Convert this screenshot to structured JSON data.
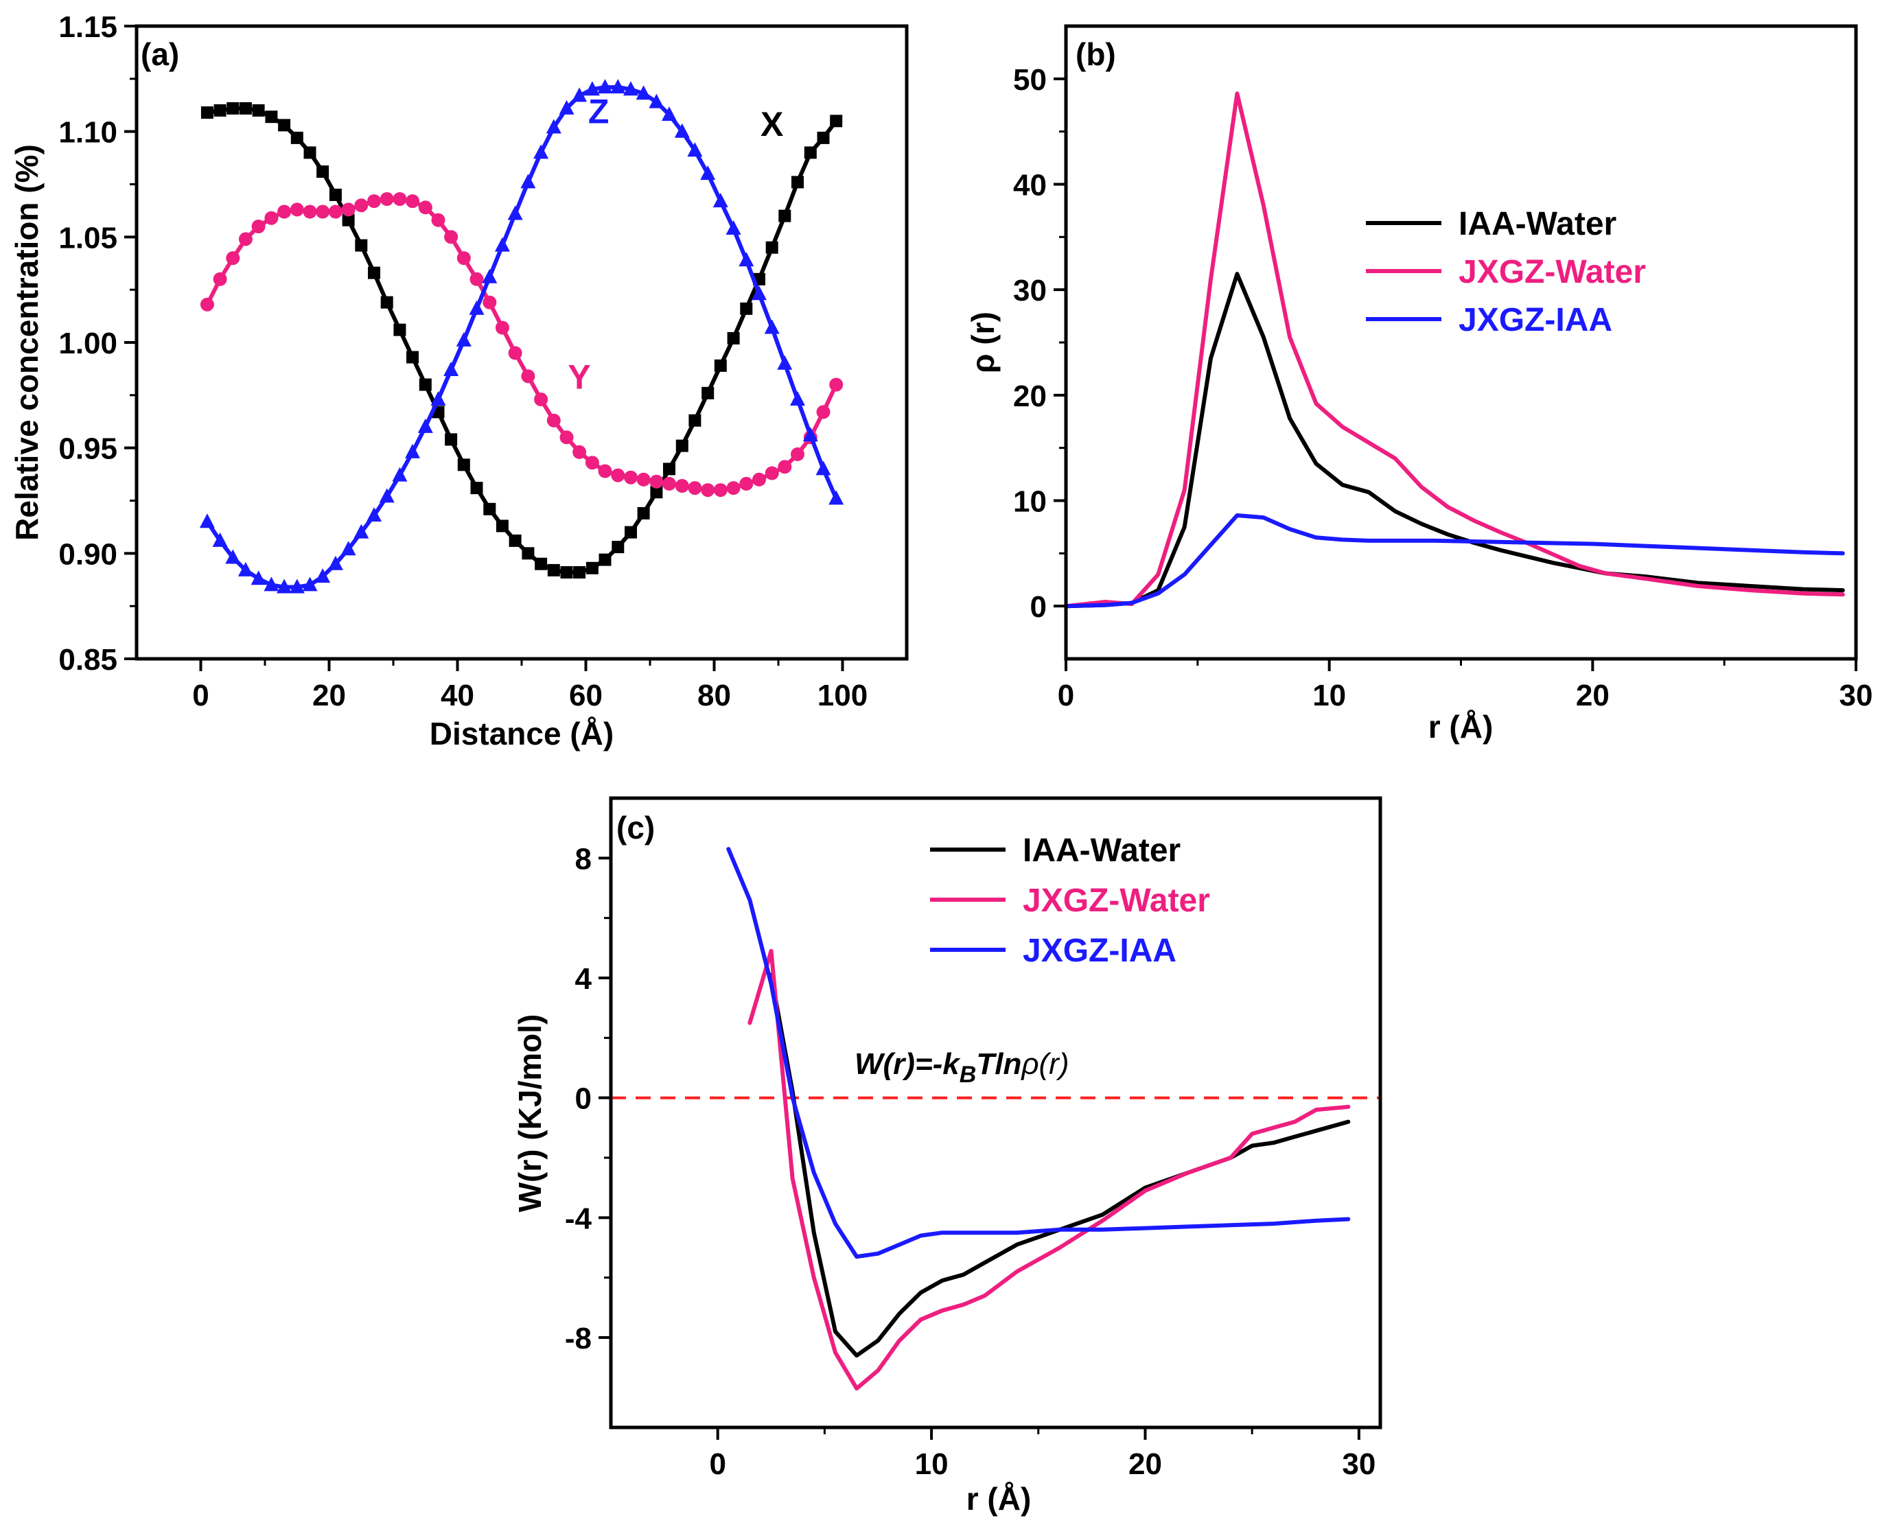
{
  "chart_data": [
    {
      "panel": "(a)",
      "type": "line",
      "title": "",
      "xlabel": "Distance (Å)",
      "ylabel": "Relative concentration (%)",
      "xlim": [
        -10,
        110
      ],
      "ylim": [
        0.85,
        1.15
      ],
      "xticks": [
        0,
        20,
        40,
        60,
        80,
        100
      ],
      "yticks": [
        0.85,
        0.9,
        0.95,
        1.0,
        1.05,
        1.1,
        1.15
      ],
      "xtick_labels": [
        "0",
        "20",
        "40",
        "60",
        "80",
        "100"
      ],
      "ytick_labels": [
        "0.85",
        "0.90",
        "0.95",
        "1.00",
        "1.05",
        "1.10",
        "1.15"
      ],
      "grid": false,
      "series": [
        {
          "name": "X",
          "color": "#000000",
          "marker": "square",
          "x": [
            1,
            3,
            5,
            7,
            9,
            11,
            13,
            15,
            17,
            19,
            21,
            23,
            25,
            27,
            29,
            31,
            33,
            35,
            37,
            39,
            41,
            43,
            45,
            47,
            49,
            51,
            53,
            55,
            57,
            59,
            61,
            63,
            65,
            67,
            69,
            71,
            73,
            75,
            77,
            79,
            81,
            83,
            85,
            87,
            89,
            91,
            93,
            95,
            97,
            99
          ],
          "y": [
            1.109,
            1.11,
            1.111,
            1.111,
            1.11,
            1.107,
            1.103,
            1.097,
            1.09,
            1.081,
            1.07,
            1.058,
            1.046,
            1.033,
            1.019,
            1.006,
            0.993,
            0.98,
            0.967,
            0.954,
            0.942,
            0.931,
            0.921,
            0.913,
            0.906,
            0.9,
            0.895,
            0.892,
            0.891,
            0.891,
            0.893,
            0.897,
            0.903,
            0.91,
            0.919,
            0.929,
            0.94,
            0.951,
            0.963,
            0.976,
            0.989,
            1.002,
            1.016,
            1.03,
            1.045,
            1.06,
            1.076,
            1.09,
            1.097,
            1.105
          ]
        },
        {
          "name": "Y",
          "color": "#ee1f80",
          "marker": "circle",
          "x": [
            1,
            3,
            5,
            7,
            9,
            11,
            13,
            15,
            17,
            19,
            21,
            23,
            25,
            27,
            29,
            31,
            33,
            35,
            37,
            39,
            41,
            43,
            45,
            47,
            49,
            51,
            53,
            55,
            57,
            59,
            61,
            63,
            65,
            67,
            69,
            71,
            73,
            75,
            77,
            79,
            81,
            83,
            85,
            87,
            89,
            91,
            93,
            95,
            97,
            99
          ],
          "y": [
            1.018,
            1.03,
            1.04,
            1.049,
            1.055,
            1.059,
            1.062,
            1.063,
            1.062,
            1.062,
            1.062,
            1.063,
            1.065,
            1.067,
            1.068,
            1.068,
            1.067,
            1.064,
            1.058,
            1.05,
            1.04,
            1.03,
            1.019,
            1.007,
            0.995,
            0.984,
            0.973,
            0.963,
            0.955,
            0.948,
            0.943,
            0.939,
            0.937,
            0.936,
            0.935,
            0.934,
            0.933,
            0.932,
            0.931,
            0.93,
            0.93,
            0.931,
            0.933,
            0.935,
            0.938,
            0.941,
            0.947,
            0.955,
            0.967,
            0.98
          ]
        },
        {
          "name": "Z",
          "color": "#1a1aff",
          "marker": "triangle",
          "x": [
            1,
            3,
            5,
            7,
            9,
            11,
            13,
            15,
            17,
            19,
            21,
            23,
            25,
            27,
            29,
            31,
            33,
            35,
            37,
            39,
            41,
            43,
            45,
            47,
            49,
            51,
            53,
            55,
            57,
            59,
            61,
            63,
            65,
            67,
            69,
            71,
            73,
            75,
            77,
            79,
            81,
            83,
            85,
            87,
            89,
            91,
            93,
            95,
            97,
            99
          ],
          "y": [
            0.915,
            0.906,
            0.898,
            0.892,
            0.888,
            0.885,
            0.884,
            0.884,
            0.885,
            0.889,
            0.895,
            0.902,
            0.91,
            0.918,
            0.927,
            0.937,
            0.948,
            0.96,
            0.973,
            0.987,
            1.001,
            1.016,
            1.031,
            1.046,
            1.061,
            1.076,
            1.09,
            1.102,
            1.111,
            1.117,
            1.12,
            1.121,
            1.121,
            1.12,
            1.118,
            1.114,
            1.108,
            1.1,
            1.091,
            1.08,
            1.067,
            1.054,
            1.039,
            1.023,
            1.007,
            0.99,
            0.973,
            0.956,
            0.94,
            0.926
          ]
        }
      ],
      "annotations": [
        {
          "text": "X",
          "x": 89,
          "y": 1.098
        },
        {
          "text": "Y",
          "x": 59,
          "y": 0.978
        },
        {
          "text": "Z",
          "x": 62,
          "y": 1.104
        }
      ]
    },
    {
      "panel": "(b)",
      "type": "line",
      "title": "",
      "xlabel": "r (Å)",
      "ylabel": "ρ (r)",
      "xlim": [
        0,
        30
      ],
      "ylim": [
        -5,
        55
      ],
      "xticks": [
        0,
        10,
        20,
        30
      ],
      "yticks": [
        0,
        10,
        20,
        30,
        40,
        50
      ],
      "xtick_labels": [
        "0",
        "10",
        "20",
        "30"
      ],
      "ytick_labels": [
        "0",
        "10",
        "20",
        "30",
        "40",
        "50"
      ],
      "grid": false,
      "legend_position": "center-right",
      "series": [
        {
          "name": "IAA-Water",
          "color": "#000000",
          "x": [
            0,
            1.5,
            2.5,
            3.5,
            4.5,
            5.5,
            6.5,
            7.5,
            8.5,
            9.5,
            10.5,
            11.5,
            12.5,
            13.5,
            14.5,
            15.5,
            16.5,
            17.5,
            18.5,
            19.5,
            20.5,
            22,
            24,
            26,
            28,
            29.5
          ],
          "y": [
            0,
            0.1,
            0.3,
            1.5,
            7.5,
            23.5,
            31.5,
            25.5,
            17.8,
            13.5,
            11.5,
            10.8,
            9.0,
            7.8,
            6.8,
            6.0,
            5.3,
            4.7,
            4.1,
            3.6,
            3.1,
            2.8,
            2.2,
            1.9,
            1.6,
            1.5
          ]
        },
        {
          "name": "JXGZ-Water",
          "color": "#ee1f80",
          "x": [
            0,
            1.5,
            2.5,
            3.5,
            4.5,
            5.5,
            6.5,
            7.5,
            8.5,
            9.5,
            10.5,
            11.5,
            12.5,
            13.5,
            14.5,
            15.5,
            16.5,
            17.5,
            18.5,
            19.5,
            20.5,
            22,
            24,
            26,
            28,
            29.5
          ],
          "y": [
            0,
            0.4,
            0.2,
            3.0,
            11.0,
            31.0,
            48.6,
            38.0,
            25.5,
            19.2,
            17.0,
            15.5,
            14.0,
            11.3,
            9.4,
            8.1,
            7.0,
            6.0,
            4.9,
            3.8,
            3.1,
            2.6,
            1.9,
            1.5,
            1.2,
            1.1
          ]
        },
        {
          "name": "JXGZ-IAA",
          "color": "#1a1aff",
          "x": [
            0,
            1.5,
            2.5,
            3.5,
            4.5,
            5.5,
            6.5,
            7.5,
            8.5,
            9.5,
            10.5,
            11.5,
            12.5,
            14,
            16,
            18,
            20,
            22,
            24,
            26,
            28,
            29.5
          ],
          "y": [
            0,
            0.1,
            0.3,
            1.2,
            3.0,
            5.8,
            8.6,
            8.4,
            7.3,
            6.5,
            6.3,
            6.2,
            6.2,
            6.2,
            6.1,
            6.0,
            5.9,
            5.7,
            5.5,
            5.3,
            5.1,
            5.0
          ]
        }
      ]
    },
    {
      "panel": "(c)",
      "type": "line",
      "title": "",
      "xlabel": "r (Å)",
      "ylabel": "W(r) (KJ/mol)",
      "xlim": [
        -5,
        31
      ],
      "ylim": [
        -11,
        10
      ],
      "xticks": [
        0,
        10,
        20,
        30
      ],
      "yticks": [
        -8,
        -4,
        0,
        4,
        8
      ],
      "xtick_labels": [
        "0",
        "10",
        "20",
        "30"
      ],
      "ytick_labels": [
        "-8",
        "-4",
        "0",
        "4",
        "8"
      ],
      "grid": false,
      "legend_position": "top-right",
      "reference_line": {
        "y": 0,
        "color": "#ff2020",
        "style": "dashed"
      },
      "equation": {
        "left": "W(r)=-k",
        "subscript": "B",
        "right": "Tln",
        "greek": "ρ",
        "arg": "(r)"
      },
      "series": [
        {
          "name": "IAA-Water",
          "color": "#000000",
          "x": [
            2.5,
            3.5,
            4.5,
            5.5,
            6.5,
            7.5,
            8.5,
            9.5,
            10.5,
            11.5,
            12.5,
            14,
            16,
            18,
            20,
            22,
            24,
            25,
            26,
            27,
            28,
            29.5
          ],
          "y": [
            4.1,
            0.2,
            -4.5,
            -7.8,
            -8.6,
            -8.1,
            -7.2,
            -6.5,
            -6.1,
            -5.9,
            -5.5,
            -4.9,
            -4.4,
            -3.9,
            -3.0,
            -2.5,
            -2.0,
            -1.6,
            -1.5,
            -1.3,
            -1.1,
            -0.8
          ]
        },
        {
          "name": "JXGZ-Water",
          "color": "#ee1f80",
          "x": [
            1.5,
            2.5,
            3.5,
            4.5,
            5.5,
            6.5,
            7.5,
            8.5,
            9.5,
            10.5,
            11.5,
            12.5,
            14,
            16,
            18,
            20,
            22,
            24,
            25,
            26,
            27,
            28,
            29.5
          ],
          "y": [
            2.5,
            4.9,
            -2.7,
            -6.0,
            -8.5,
            -9.7,
            -9.1,
            -8.1,
            -7.4,
            -7.1,
            -6.9,
            -6.6,
            -5.8,
            -5.0,
            -4.1,
            -3.1,
            -2.5,
            -2.0,
            -1.2,
            -1.0,
            -0.8,
            -0.4,
            -0.3
          ]
        },
        {
          "name": "JXGZ-IAA",
          "color": "#1a1aff",
          "x": [
            0.5,
            1.5,
            2.5,
            3.5,
            4.5,
            5.5,
            6.5,
            7.5,
            8.5,
            9.5,
            10.5,
            11.5,
            12.5,
            14,
            16,
            18,
            20,
            22,
            24,
            26,
            28,
            29.5
          ],
          "y": [
            8.3,
            6.6,
            3.8,
            0.0,
            -2.5,
            -4.2,
            -5.3,
            -5.2,
            -4.9,
            -4.6,
            -4.5,
            -4.5,
            -4.5,
            -4.5,
            -4.4,
            -4.4,
            -4.35,
            -4.3,
            -4.25,
            -4.2,
            -4.1,
            -4.05
          ]
        }
      ]
    }
  ]
}
